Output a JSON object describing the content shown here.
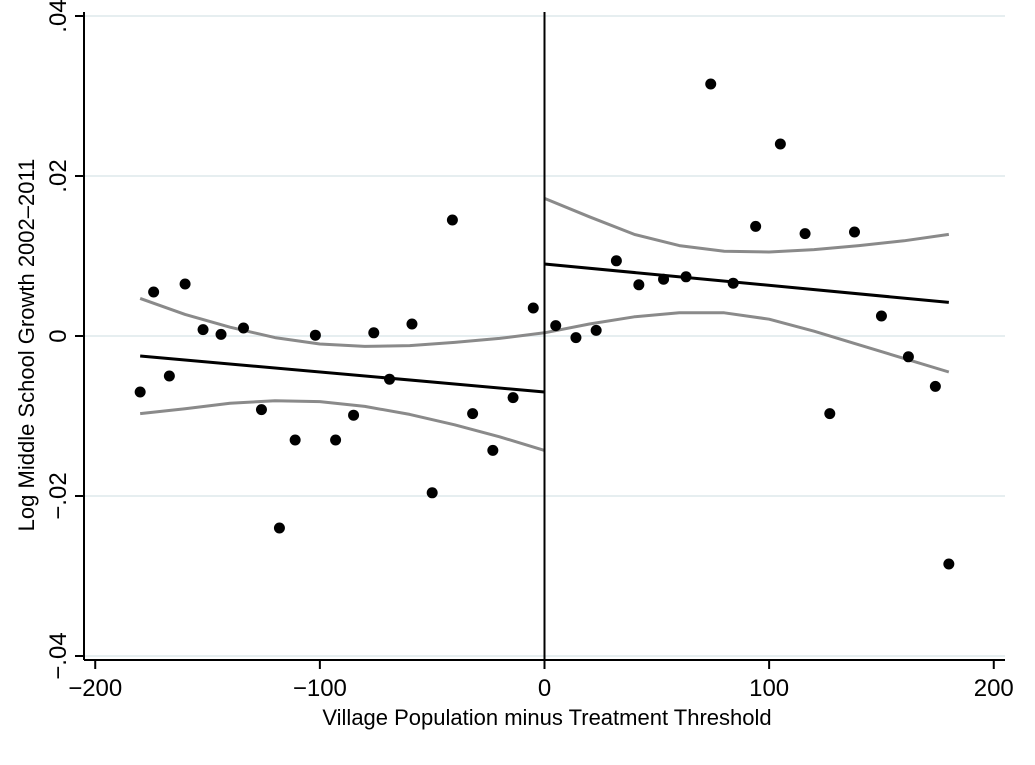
{
  "chart_data": {
    "type": "scatter",
    "title": "",
    "xlabel": "Village Population minus Treatment Threshold",
    "ylabel": "Log Middle School Growth 2002–2011",
    "xlim": [
      -205,
      205
    ],
    "ylim": [
      -0.0405,
      0.0405
    ],
    "x_ticks": [
      -200,
      -100,
      0,
      100,
      200
    ],
    "x_tick_labels": [
      "−200",
      "−100",
      "0",
      "100",
      "200"
    ],
    "y_ticks": [
      -0.04,
      -0.02,
      0,
      0.02,
      0.04
    ],
    "y_tick_labels": [
      "−.04",
      "−.02",
      "0",
      ".02",
      ".04"
    ],
    "grid": "horizontal",
    "cutoff_x": 0,
    "points": {
      "x": [
        -180,
        -174,
        -167,
        -160,
        -152,
        -144,
        -134,
        -126,
        -118,
        -111,
        -102,
        -93,
        -85,
        -76,
        -69,
        -59,
        -50,
        -41,
        -32,
        -23,
        -14,
        -5,
        5,
        14,
        23,
        32,
        42,
        53,
        63,
        74,
        84,
        94,
        105,
        116,
        127,
        138,
        150,
        162,
        174,
        180
      ],
      "y": [
        -0.007,
        0.0055,
        -0.005,
        0.0065,
        0.0008,
        0.0002,
        0.001,
        -0.0092,
        -0.024,
        -0.013,
        0.0001,
        -0.013,
        -0.0099,
        0.0004,
        -0.0054,
        0.0015,
        -0.0196,
        0.0145,
        -0.0097,
        -0.0143,
        -0.0077,
        0.0035,
        0.0013,
        -0.0002,
        0.0007,
        0.0094,
        0.0064,
        0.0071,
        0.0074,
        0.0315,
        0.0066,
        0.0137,
        0.024,
        0.0128,
        -0.0097,
        0.013,
        0.0025,
        -0.0026,
        -0.0063,
        -0.0285
      ]
    },
    "series": [
      {
        "role": "fit",
        "x": [
          -180,
          0
        ],
        "y": [
          -0.0025,
          -0.007
        ]
      },
      {
        "role": "fit",
        "x": [
          0,
          180
        ],
        "y": [
          0.009,
          0.0042
        ]
      },
      {
        "role": "ci",
        "x": [
          -180,
          -160,
          -140,
          -120,
          -100,
          -80,
          -60,
          -40,
          -20,
          0
        ],
        "y": [
          0.0047,
          0.0027,
          0.0011,
          -0.0002,
          -0.001,
          -0.0013,
          -0.0012,
          -0.0008,
          -0.0003,
          0.0004
        ]
      },
      {
        "role": "ci",
        "x": [
          -180,
          -160,
          -140,
          -120,
          -100,
          -80,
          -60,
          -40,
          -20,
          0
        ],
        "y": [
          -0.0097,
          -0.0091,
          -0.0084,
          -0.0081,
          -0.0082,
          -0.0088,
          -0.0098,
          -0.0111,
          -0.0126,
          -0.0143
        ]
      },
      {
        "role": "ci",
        "x": [
          0,
          20,
          40,
          60,
          80,
          100,
          120,
          140,
          160,
          180
        ],
        "y": [
          0.0172,
          0.0149,
          0.0127,
          0.0113,
          0.0106,
          0.0105,
          0.0108,
          0.0113,
          0.0119,
          0.0127
        ]
      },
      {
        "role": "ci",
        "x": [
          0,
          20,
          40,
          60,
          80,
          100,
          120,
          140,
          160,
          180
        ],
        "y": [
          0.0004,
          0.0015,
          0.0024,
          0.0029,
          0.0029,
          0.0021,
          0.0006,
          -0.0011,
          -0.0028,
          -0.0045
        ]
      }
    ],
    "colors": {
      "points": "#000000",
      "fit": "#000000",
      "ci": "#8a8a8a",
      "grid": "#e6eef0",
      "axis": "#000000"
    }
  }
}
